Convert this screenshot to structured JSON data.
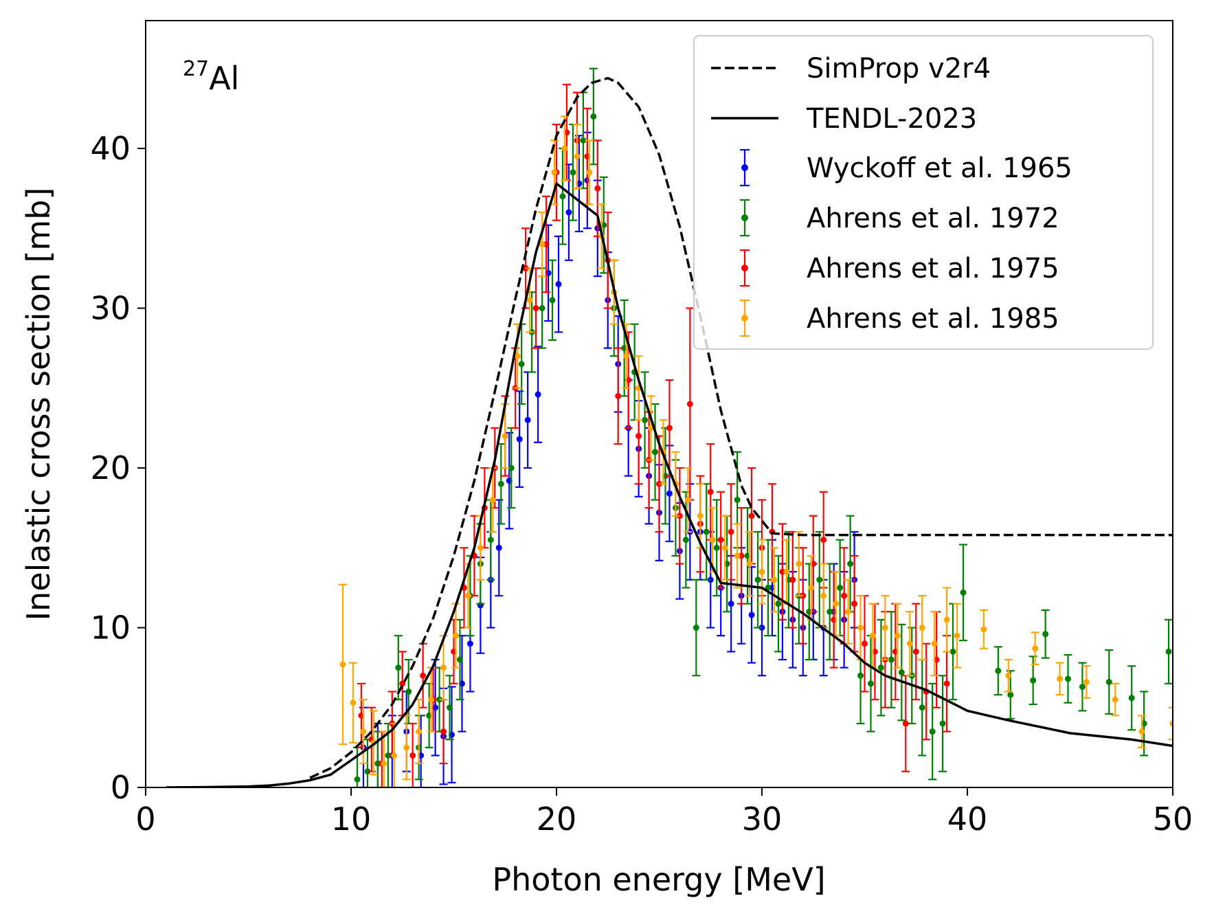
{
  "chart_data": {
    "type": "line",
    "title": "",
    "annotation": {
      "superscript": "27",
      "text": "Al"
    },
    "xlabel": "Photon energy [MeV]",
    "ylabel": "Inelastic cross section [mb]",
    "xlim": [
      0,
      50
    ],
    "ylim": [
      0,
      48
    ],
    "xticks": [
      "0",
      "10",
      "20",
      "30",
      "40",
      "50"
    ],
    "yticks": [
      "0",
      "10",
      "20",
      "30",
      "40"
    ],
    "grid": false,
    "legend_position": "top-right",
    "lines": [
      {
        "name": "SimProp v2r4",
        "style": "dashed",
        "color": "#000000",
        "x": [
          8,
          9,
          10,
          11,
          12,
          13,
          14,
          15,
          16,
          17,
          18,
          19,
          20,
          21,
          21.7,
          22.5,
          23,
          24,
          25,
          26,
          27,
          28,
          29,
          29.5,
          30.5,
          32,
          35,
          40,
          45,
          50
        ],
        "y": [
          0.6,
          1.2,
          2.2,
          3.5,
          5.2,
          7.6,
          10.6,
          14.5,
          19.2,
          24.8,
          30.6,
          36.2,
          40.8,
          43.2,
          44.1,
          44.4,
          44.1,
          42.6,
          39.6,
          35.1,
          29.5,
          23.6,
          18.9,
          17.5,
          15.9,
          15.8,
          15.8,
          15.8,
          15.8,
          15.8
        ]
      },
      {
        "name": "TENDL-2023",
        "style": "solid",
        "color": "#000000",
        "x": [
          1,
          3,
          5,
          6,
          7,
          8,
          9,
          10,
          11,
          12,
          13,
          14,
          15,
          16,
          17,
          18,
          19,
          20,
          21,
          22,
          23,
          24,
          25,
          26,
          27,
          28,
          30,
          32,
          34,
          35,
          36,
          38,
          40,
          42,
          45,
          48,
          50
        ],
        "y": [
          0.0,
          0.02,
          0.06,
          0.12,
          0.25,
          0.45,
          0.8,
          1.7,
          2.6,
          3.6,
          5.2,
          7.6,
          11.0,
          15.0,
          20.5,
          27.5,
          33.5,
          37.8,
          36.8,
          35.8,
          30.0,
          25.5,
          21.5,
          18.2,
          15.3,
          12.8,
          12.5,
          10.9,
          9.0,
          7.8,
          7.0,
          6.1,
          4.8,
          4.2,
          3.4,
          3.0,
          2.6
        ]
      }
    ],
    "series": [
      {
        "name": "Wyckoff et al. 1965",
        "color": "#0000ff",
        "x": [
          10.6,
          11.3,
          12.0,
          12.7,
          13.4,
          14.1,
          14.5,
          14.9,
          15.4,
          15.8,
          16.3,
          16.8,
          17.2,
          17.7,
          18.2,
          18.6,
          19.1,
          19.6,
          20.1,
          20.6,
          21.1,
          21.5,
          22.0,
          22.5,
          23.0,
          23.5,
          24.0,
          24.5,
          25.0,
          25.5,
          26.0,
          26.5,
          27.0,
          27.5,
          28.0,
          28.5,
          29.0,
          29.5,
          30.0,
          30.5,
          31.0,
          31.5,
          32.0,
          32.5,
          33.0,
          33.5,
          34.0,
          34.5
        ],
        "y": [
          2.5,
          1.5,
          2.0,
          3.5,
          2.0,
          5.0,
          3.2,
          3.3,
          6.5,
          9.0,
          11.4,
          13.0,
          15.0,
          19.2,
          21.8,
          23.0,
          24.6,
          32.2,
          31.5,
          36.0,
          37.8,
          38.0,
          35.0,
          30.5,
          26.5,
          22.5,
          21.2,
          19.5,
          17.2,
          18.4,
          14.8,
          16.0,
          16.0,
          13.0,
          12.5,
          11.5,
          12.0,
          10.8,
          10.0,
          12.5,
          11.0,
          10.5,
          10.0,
          11.0,
          10.0,
          11.0,
          10.5,
          13.0
        ],
        "yerr": [
          2.5,
          2.5,
          2.5,
          2.5,
          2.5,
          3.0,
          3.0,
          3.0,
          3.0,
          3.0,
          3.0,
          3.0,
          3.0,
          3.0,
          3.0,
          3.0,
          3.0,
          3.0,
          3.0,
          3.0,
          3.0,
          3.0,
          3.0,
          3.0,
          3.0,
          3.0,
          3.0,
          3.0,
          3.0,
          3.0,
          3.0,
          3.0,
          3.0,
          3.0,
          3.0,
          3.0,
          3.0,
          3.0,
          3.0,
          3.0,
          3.0,
          3.0,
          3.0,
          3.0,
          3.0,
          3.0,
          3.0,
          3.0
        ]
      },
      {
        "name": "Ahrens et al. 1972",
        "color": "#008000",
        "x": [
          10.3,
          10.8,
          11.3,
          11.8,
          12.3,
          12.8,
          13.3,
          13.8,
          14.3,
          14.8,
          15.3,
          15.8,
          16.3,
          16.8,
          17.3,
          17.8,
          18.3,
          18.8,
          19.3,
          19.8,
          20.3,
          20.8,
          21.3,
          21.8,
          22.3,
          22.8,
          23.3,
          23.8,
          24.3,
          24.8,
          25.3,
          25.8,
          26.3,
          26.8,
          27.3,
          27.8,
          28.3,
          28.8,
          29.3,
          29.8,
          30.3,
          30.8,
          31.3,
          31.8,
          32.3,
          32.8,
          33.3,
          33.8,
          34.3,
          34.8,
          35.3,
          35.8,
          36.3,
          36.8,
          37.3,
          37.8,
          38.3,
          38.8,
          39.3,
          39.8,
          41.5,
          42.1,
          43.2,
          43.8,
          44.9,
          45.6,
          46.9,
          48.0,
          48.6,
          49.8
        ],
        "y": [
          0.5,
          1.0,
          1.5,
          2.0,
          7.5,
          6.0,
          2.5,
          4.5,
          5.5,
          5.0,
          8.0,
          12.0,
          14.0,
          15.5,
          19.0,
          20.0,
          26.5,
          28.5,
          30.0,
          30.5,
          37.0,
          38.5,
          40.5,
          42.0,
          35.2,
          30.0,
          27.5,
          26.0,
          23.0,
          21.0,
          19.5,
          17.5,
          15.5,
          10.0,
          16.0,
          15.0,
          14.0,
          18.0,
          14.5,
          13.0,
          12.5,
          11.5,
          13.0,
          12.0,
          11.0,
          13.0,
          11.0,
          12.5,
          14.0,
          7.0,
          6.5,
          7.5,
          8.0,
          7.2,
          7.0,
          5.0,
          3.5,
          4.0,
          8.5,
          12.2,
          7.3,
          5.8,
          6.7,
          9.6,
          6.8,
          6.3,
          6.6,
          5.6,
          4.0,
          8.5
        ],
        "yerr": [
          2.0,
          2.0,
          2.0,
          2.0,
          2.0,
          2.0,
          2.0,
          2.0,
          2.0,
          2.0,
          2.5,
          2.5,
          2.5,
          2.5,
          2.5,
          2.5,
          2.5,
          2.5,
          2.5,
          2.5,
          3.0,
          3.0,
          3.0,
          3.0,
          3.0,
          3.0,
          3.0,
          3.0,
          3.0,
          3.0,
          3.0,
          3.0,
          3.0,
          3.0,
          3.0,
          3.0,
          3.0,
          3.0,
          3.0,
          3.0,
          3.0,
          3.0,
          3.0,
          3.0,
          3.0,
          3.0,
          3.0,
          3.0,
          3.0,
          3.0,
          3.0,
          3.0,
          3.0,
          3.0,
          3.0,
          3.0,
          3.0,
          3.0,
          3.0,
          3.0,
          1.5,
          1.5,
          1.5,
          1.5,
          1.5,
          1.5,
          2.0,
          2.0,
          2.0,
          2.0
        ]
      },
      {
        "name": "Ahrens et al. 1975",
        "color": "#ff0000",
        "x": [
          10.5,
          11.0,
          11.5,
          12.0,
          12.5,
          13.0,
          13.5,
          14.0,
          14.5,
          15.0,
          15.5,
          16.0,
          16.5,
          17.0,
          17.5,
          18.0,
          18.5,
          19.0,
          19.5,
          20.0,
          20.5,
          21.0,
          21.5,
          22.0,
          22.5,
          23.0,
          23.5,
          24.0,
          24.5,
          25.0,
          25.5,
          26.0,
          26.5,
          27.0,
          27.5,
          28.0,
          28.5,
          29.0,
          29.5,
          30.0,
          30.5,
          31.0,
          31.5,
          32.0,
          32.5,
          33.0,
          33.5,
          34.0,
          34.5,
          35.0,
          35.5,
          36.0,
          36.5,
          37.0,
          37.5,
          38.0,
          38.5,
          39.0
        ],
        "y": [
          4.5,
          3.0,
          1.5,
          4.0,
          6.5,
          2.0,
          7.0,
          5.5,
          3.5,
          8.5,
          12.5,
          14.5,
          17.5,
          20.0,
          22.0,
          25.0,
          32.5,
          30.0,
          34.0,
          38.5,
          41.0,
          40.5,
          39.5,
          37.5,
          33.0,
          24.5,
          25.5,
          22.0,
          20.5,
          19.0,
          22.5,
          17.0,
          24.0,
          16.5,
          18.5,
          15.5,
          16.0,
          14.5,
          17.0,
          15.0,
          16.0,
          13.5,
          13.0,
          12.0,
          14.0,
          15.5,
          10.5,
          12.0,
          11.5,
          9.0,
          8.5,
          8.0,
          8.5,
          4.0,
          8.5,
          6.0,
          8.0,
          6.5
        ],
        "yerr": [
          2.0,
          2.0,
          2.0,
          2.0,
          2.0,
          2.0,
          2.0,
          2.0,
          2.0,
          2.0,
          2.5,
          2.5,
          2.5,
          2.5,
          2.5,
          2.5,
          2.5,
          2.5,
          3.0,
          3.0,
          3.0,
          3.0,
          3.0,
          3.0,
          3.0,
          3.0,
          3.0,
          3.0,
          3.0,
          3.0,
          3.0,
          3.0,
          6.0,
          3.0,
          3.0,
          3.0,
          3.0,
          3.0,
          3.0,
          3.0,
          3.0,
          3.0,
          3.0,
          3.0,
          3.0,
          3.0,
          3.0,
          3.0,
          3.0,
          3.0,
          3.0,
          3.0,
          3.0,
          3.0,
          3.0,
          3.0,
          3.0,
          3.0
        ]
      },
      {
        "name": "Ahrens et al. 1985",
        "color": "#ffa500",
        "x": [
          9.6,
          10.1,
          10.6,
          11.1,
          11.6,
          12.1,
          12.7,
          13.3,
          13.9,
          14.5,
          15.1,
          15.7,
          16.3,
          16.9,
          17.5,
          18.1,
          18.7,
          19.3,
          19.9,
          20.4,
          21.0,
          21.6,
          22.2,
          22.8,
          23.4,
          24.0,
          24.6,
          25.2,
          25.8,
          26.4,
          27.0,
          27.6,
          28.2,
          28.8,
          29.4,
          30.0,
          30.6,
          31.2,
          31.8,
          32.4,
          33.0,
          33.6,
          34.2,
          34.8,
          35.4,
          36.0,
          36.6,
          37.2,
          37.8,
          38.4,
          39.0,
          39.5,
          40.8,
          42.0,
          43.3,
          44.5,
          45.8,
          47.2,
          48.5,
          50.0
        ],
        "y": [
          7.7,
          5.3,
          3.5,
          2.8,
          1.5,
          2.0,
          2.5,
          3.5,
          5.5,
          7.5,
          9.5,
          12.0,
          15.0,
          18.0,
          22.0,
          27.0,
          30.5,
          34.0,
          38.5,
          40.0,
          39.5,
          38.5,
          34.5,
          31.0,
          27.0,
          25.0,
          22.5,
          21.0,
          19.0,
          18.0,
          17.0,
          15.5,
          15.0,
          14.5,
          14.0,
          13.5,
          13.0,
          13.5,
          14.0,
          12.5,
          12.0,
          11.5,
          11.0,
          10.0,
          9.5,
          10.0,
          9.5,
          9.0,
          10.0,
          9.0,
          10.5,
          9.5,
          9.9,
          7.0,
          8.7,
          6.8,
          6.6,
          5.5,
          3.5,
          4.0
        ],
        "yerr": [
          5.0,
          2.5,
          2.0,
          2.0,
          2.0,
          2.0,
          2.0,
          2.0,
          2.0,
          2.0,
          2.0,
          2.0,
          2.0,
          2.0,
          2.0,
          2.0,
          2.0,
          2.0,
          2.0,
          2.0,
          2.0,
          2.0,
          2.0,
          2.0,
          2.0,
          2.0,
          2.0,
          2.0,
          2.0,
          2.0,
          2.0,
          2.0,
          2.0,
          2.0,
          2.0,
          2.0,
          2.0,
          2.0,
          2.0,
          2.0,
          2.0,
          2.0,
          2.0,
          2.0,
          2.0,
          2.0,
          2.0,
          2.0,
          2.0,
          2.0,
          2.0,
          2.0,
          1.2,
          1.0,
          1.0,
          1.0,
          1.0,
          1.0,
          1.0,
          1.0
        ]
      }
    ]
  }
}
